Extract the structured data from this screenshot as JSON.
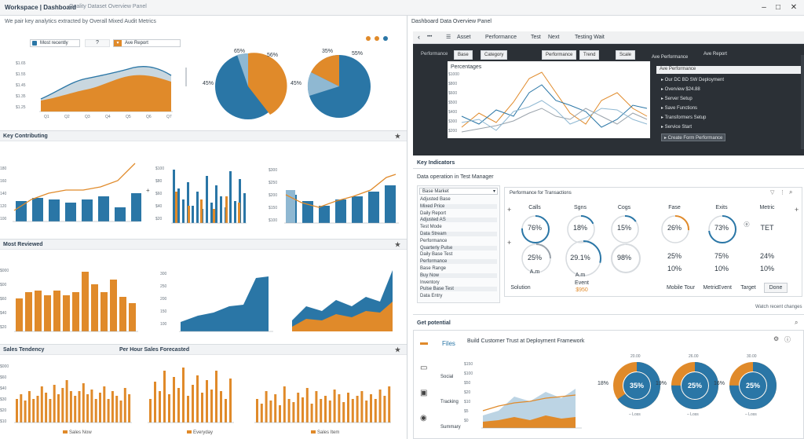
{
  "window": {
    "title": "Workspace | Dashboard",
    "subtitle_center": "Quality Dataset Overview Panel",
    "right_title": "Dashboard Data Overview Panel",
    "subline": "We pair key analytics extracted by Overall Mixed Audit Metrics"
  },
  "colors": {
    "orange": "#e08a2a",
    "blue": "#2a76a6",
    "lightblue": "#8fb8d2",
    "grey": "#9aa3ab",
    "dark": "#2b3036"
  },
  "icons": [
    "minimize-icon",
    "maximize-icon",
    "close-icon",
    "star-icon",
    "search-icon",
    "gear-icon",
    "list-icon",
    "back-icon"
  ],
  "top_left": {
    "dropdown_label": "Most recently",
    "question": "?",
    "filter_label": "Ave Report",
    "area_chart": {
      "y_ticks": [
        "$1.65",
        "$1.55",
        "$1.45",
        "$1.35",
        "$1.25"
      ],
      "x_ticks": [
        "Q1",
        "Q2",
        "Q3",
        "Q4",
        "Q5",
        "Q6",
        "Q7"
      ]
    },
    "pie1": {
      "labels": [
        "65%",
        "56%",
        "45%"
      ]
    },
    "pie2": {
      "labels": [
        "35%",
        "55%",
        "45%"
      ]
    }
  },
  "sections": {
    "s1": "Key Contributing",
    "s2": "Most Reviewed",
    "s3_left": "Sales Tendency",
    "s3_mid": "Per Hour Sales Forecasted"
  },
  "s1_charts": {
    "y1": [
      "180",
      "160",
      "140",
      "120",
      "100"
    ],
    "y2": [
      "$100",
      "$80",
      "$60",
      "$40",
      "$20"
    ],
    "y3": [
      "$300",
      "$250",
      "$200",
      "$150",
      "$100"
    ]
  },
  "s2_charts": {
    "y1": [
      "$000",
      "$00",
      "$60",
      "$40",
      "$20"
    ],
    "y2": [
      "300",
      "250",
      "200",
      "150",
      "100"
    ]
  },
  "s3_charts": {
    "y1": [
      "$000",
      "$60",
      "$40",
      "$30",
      "$20",
      "$10"
    ],
    "legend1": "Sales Now",
    "legend2": "Everyday",
    "legend3": "Sales Item"
  },
  "dark_panel": {
    "tabs": [
      "Asset",
      "Performance",
      "Test",
      "Next",
      "Testing Wait"
    ],
    "sub_tabs": [
      "Performance",
      "Base",
      "Category",
      "Performance",
      "Trend",
      "Scale"
    ],
    "chart_title": "Percentages",
    "y_ticks": [
      "$1000",
      "$800",
      "$600",
      "$500",
      "$400",
      "$300",
      "$200"
    ],
    "tree_header": "Ave Performance",
    "tree_search": "Ave Report",
    "tree": [
      "Our DC BD SW Deployment",
      "Overview  $24.88",
      "Server Setup",
      "Save Functions",
      "Transformers Setup",
      "Service Start",
      "Create Form Performance"
    ]
  },
  "mid_right": {
    "header": "Key Indicators",
    "sub": "Data operation in Test Manager",
    "list_select": "Base Market",
    "list": [
      "Adjusted Base",
      "Mixed Price",
      "Daily Report",
      "Adjusted AS",
      "Test Mode",
      "Data Stream",
      "Performance",
      "Quarterly Pulse",
      "Daily Base Test",
      "Performance",
      "Base Range",
      "Buy Now",
      "Inventory",
      "Pulse Base Test",
      "Data Entry"
    ],
    "stats_title": "Performance for Transactions",
    "cols": [
      "Calls",
      "Sgns",
      "Cogs",
      "Fase",
      "Exits",
      "Metric"
    ],
    "row1": [
      "76%",
      "18%",
      "15%",
      "26%",
      "73%",
      "TET"
    ],
    "row2": [
      "25%",
      "29.1%",
      "98%",
      "25%",
      "75%",
      "24%"
    ],
    "row3": [
      "",
      "",
      "",
      "10%",
      "10%",
      "10%"
    ],
    "gauge_sub": [
      "A.m",
      "A.m"
    ],
    "footer_left": "Solution",
    "footer_mid": "Event",
    "footer_mid_val": "$950",
    "footer_right": [
      "Mobile Tour",
      "Metric",
      "Event",
      "Target",
      "Done"
    ],
    "under": "Watch recent changes"
  },
  "bottom_right": {
    "header": "Get potential",
    "title": "Build Customer Trust at Deployment Framework",
    "side": [
      "Files",
      "Social",
      "Tracking",
      "Summary"
    ],
    "y_ticks": [
      "$150",
      "$100",
      "$50",
      "$20",
      "$10",
      "$5",
      "$0"
    ],
    "donuts": [
      {
        "center": "35%",
        "side": "18%",
        "sub": "Loss"
      },
      {
        "center": "25%",
        "side": "19%",
        "sub": "Loss"
      },
      {
        "center": "25%",
        "side": "16%",
        "sub": "Loss"
      }
    ],
    "donut_tops": [
      "20.00",
      "26.00",
      "30.00"
    ]
  }
}
